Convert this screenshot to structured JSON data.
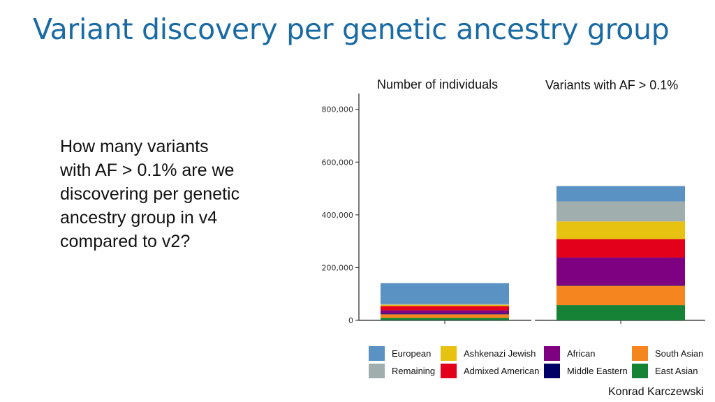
{
  "slide": {
    "title": "Variant discovery per genetic ancestry group",
    "question_lines": [
      "How many variants",
      "with AF > 0.1% are we",
      "discovering per genetic",
      "ancestry group in v4",
      "compared to v2?"
    ],
    "author": "Konrad Karczewski"
  },
  "chart_data": {
    "type": "bar",
    "stacked": true,
    "facets": [
      "Number of individuals",
      "Variants with AF > 0.1%"
    ],
    "ylim": [
      0,
      860000
    ],
    "yticks": [
      0,
      200000,
      400000,
      600000,
      800000
    ],
    "ytick_labels": [
      "0",
      "200,000",
      "400,000",
      "600,000",
      "800,000"
    ],
    "grid": false,
    "legend_position": "bottom",
    "legend_order": [
      "European",
      "Ashkenazi Jewish",
      "African",
      "South Asian",
      "Remaining",
      "Admixed American",
      "Middle Eastern",
      "East Asian"
    ],
    "stack_order": [
      "East Asian",
      "South Asian",
      "Middle Eastern",
      "African",
      "Admixed American",
      "Ashkenazi Jewish",
      "Remaining",
      "European"
    ],
    "colors": {
      "European": "#5b92c4",
      "Ashkenazi Jewish": "#e8c210",
      "African": "#7d0181",
      "South Asian": "#f5851f",
      "Remaining": "#a0afad",
      "Admixed American": "#e2001a",
      "Middle Eastern": "#000066",
      "East Asian": "#168236"
    },
    "series": [
      {
        "name": "East Asian",
        "values": [
          9000,
          58000
        ]
      },
      {
        "name": "South Asian",
        "values": [
          14000,
          73000
        ]
      },
      {
        "name": "Middle Eastern",
        "values": [
          3000,
          2000
        ]
      },
      {
        "name": "African",
        "values": [
          12000,
          105000
        ]
      },
      {
        "name": "Admixed American",
        "values": [
          16000,
          70000
        ]
      },
      {
        "name": "Ashkenazi Jewish",
        "values": [
          5000,
          67000
        ]
      },
      {
        "name": "Remaining",
        "values": [
          3000,
          76000
        ]
      },
      {
        "name": "European",
        "values": [
          79000,
          58000
        ]
      }
    ]
  }
}
